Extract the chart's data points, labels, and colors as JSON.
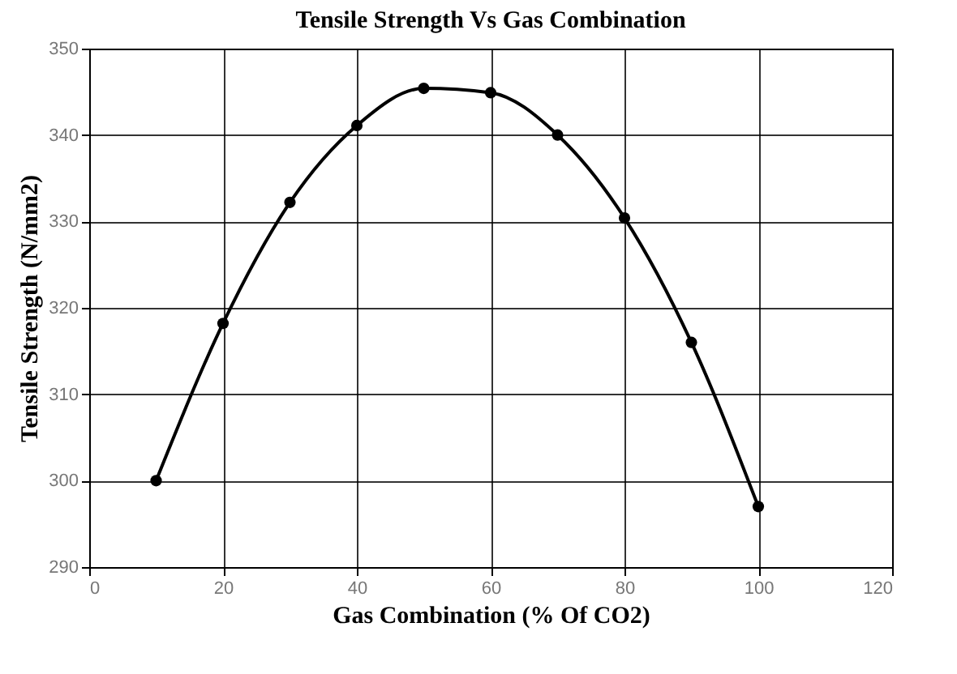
{
  "chart_data": {
    "type": "line",
    "title": "Tensile Strength Vs Gas Combination",
    "xlabel": "Gas Combination  (% Of CO2)",
    "ylabel": "Tensile Strength  (N/mm2)",
    "x": [
      10,
      20,
      30,
      40,
      50,
      60,
      70,
      80,
      90,
      100
    ],
    "series": [
      {
        "color": "#000000",
        "values": [
          300,
          318.2,
          332.2,
          341.1,
          345.4,
          344.9,
          340,
          330.4,
          316,
          297
        ]
      }
    ],
    "xlim": [
      0,
      120
    ],
    "xticks": [
      0,
      20,
      40,
      60,
      80,
      100,
      120
    ],
    "ylim": [
      290,
      350
    ],
    "yticks": [
      290,
      300,
      310,
      320,
      330,
      340,
      350
    ],
    "grid": true,
    "marker": "circle",
    "line_style": "solid"
  }
}
